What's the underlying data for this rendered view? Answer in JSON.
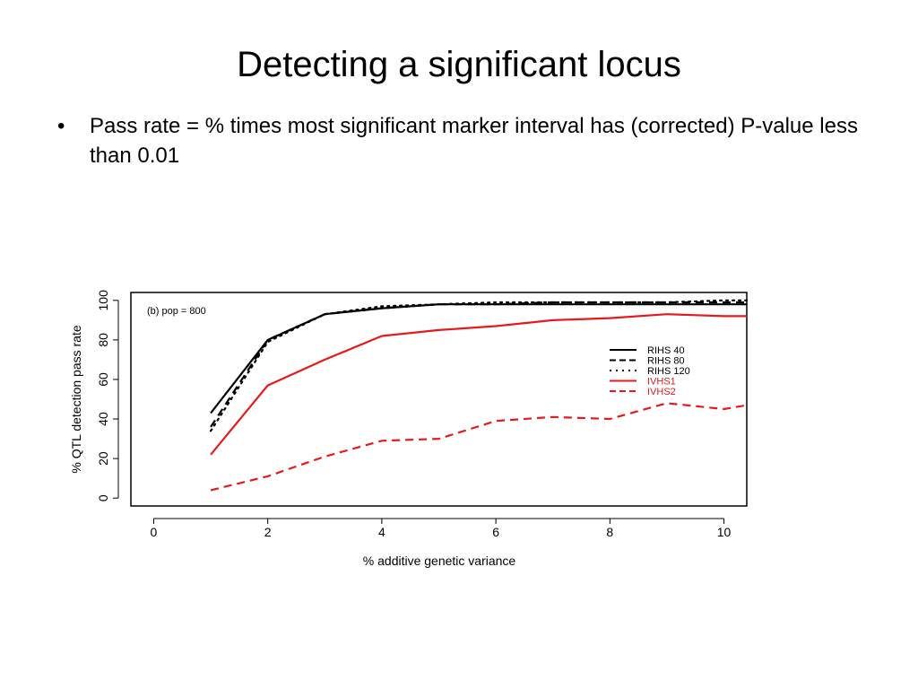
{
  "slide": {
    "title": "Detecting a significant locus",
    "bullets": [
      {
        "marker": "•",
        "text": "Pass rate = % times most significant marker interval has (corrected) P-value less than 0.01"
      }
    ]
  },
  "chart_data": {
    "type": "line",
    "title": "",
    "annotation": "(b) pop = 800",
    "xlabel": "% additive genetic variance",
    "ylabel": "% QTL detection pass rate",
    "xlim": [
      -0.4,
      10.4
    ],
    "ylim": [
      -4,
      104
    ],
    "xticks": [
      0,
      2,
      4,
      6,
      8,
      10
    ],
    "yticks": [
      0,
      20,
      40,
      60,
      80,
      100
    ],
    "grid": false,
    "legend_position": "right",
    "series": [
      {
        "name": "RIHS 40",
        "color": "#000000",
        "dash": "solid",
        "x": [
          1,
          2,
          3,
          4,
          5,
          6,
          7,
          8,
          9,
          10,
          10.4
        ],
        "y": [
          43,
          80,
          93,
          96,
          98,
          98,
          98,
          98,
          98,
          98,
          98
        ]
      },
      {
        "name": "RIHS 80",
        "color": "#000000",
        "dash": "dashed",
        "x": [
          1,
          2,
          3,
          4,
          5,
          6,
          7,
          8,
          9,
          10,
          10.4
        ],
        "y": [
          36,
          80,
          93,
          96,
          98,
          98,
          99,
          99,
          99,
          99,
          99
        ]
      },
      {
        "name": "RIHS 120",
        "color": "#000000",
        "dash": "dotted",
        "x": [
          1,
          2,
          3,
          4,
          5,
          6,
          7,
          8,
          9,
          10,
          10.4
        ],
        "y": [
          34,
          79,
          93,
          97,
          98,
          99,
          99,
          99,
          99,
          100,
          100
        ]
      },
      {
        "name": "IVHS1",
        "color": "#e41a1c",
        "dash": "solid",
        "x": [
          1,
          2,
          3,
          4,
          5,
          6,
          7,
          8,
          9,
          10,
          10.4
        ],
        "y": [
          22,
          57,
          70,
          82,
          85,
          87,
          90,
          91,
          93,
          92,
          92
        ]
      },
      {
        "name": "IVHS2",
        "color": "#e41a1c",
        "dash": "dashed",
        "x": [
          1,
          2,
          3,
          4,
          5,
          6,
          7,
          8,
          9,
          10,
          10.4
        ],
        "y": [
          4,
          11,
          21,
          29,
          30,
          39,
          41,
          40,
          48,
          45,
          47
        ]
      }
    ]
  }
}
